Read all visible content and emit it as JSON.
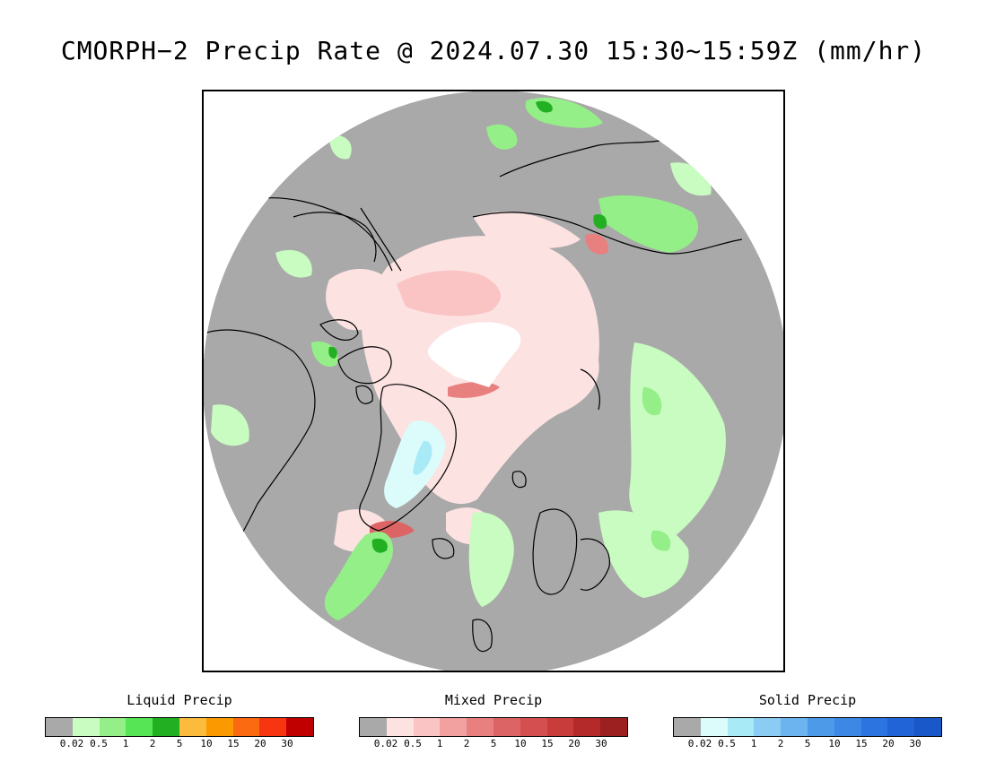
{
  "title": "CMORPH−2 Precip Rate @ 2024.07.30 15:30~15:59Z (mm/hr)",
  "map": {
    "projection": "north-polar-stereographic",
    "no_precip_color": "#a9a9a9",
    "coastline_color": "#000000"
  },
  "legends": [
    {
      "title": "Liquid Precip",
      "colors": [
        "#a9a9a9",
        "#c8fcc0",
        "#94ef88",
        "#55e555",
        "#22b022",
        "#fbbb3c",
        "#fb9a00",
        "#fb6a10",
        "#f73510",
        "#c00000"
      ],
      "ticks": [
        "0.02",
        "0.5",
        "1",
        "2",
        "5",
        "10",
        "15",
        "20",
        "30"
      ]
    },
    {
      "title": "Mixed Precip",
      "colors": [
        "#a9a9a9",
        "#fde2e2",
        "#fac4c4",
        "#f2a0a0",
        "#e88080",
        "#dc6464",
        "#d45050",
        "#c83c3c",
        "#b42a2a",
        "#9c2020"
      ],
      "ticks": [
        "0.02",
        "0.5",
        "1",
        "2",
        "5",
        "10",
        "15",
        "20",
        "30"
      ]
    },
    {
      "title": "Solid Precip",
      "colors": [
        "#a9a9a9",
        "#dcfcfc",
        "#a8eaf6",
        "#8accf4",
        "#6cb4f0",
        "#4c9ae8",
        "#3c88e4",
        "#2c74e0",
        "#2064d8",
        "#1858c8"
      ],
      "ticks": [
        "0.02",
        "0.5",
        "1",
        "2",
        "5",
        "10",
        "15",
        "20",
        "30"
      ]
    }
  ]
}
